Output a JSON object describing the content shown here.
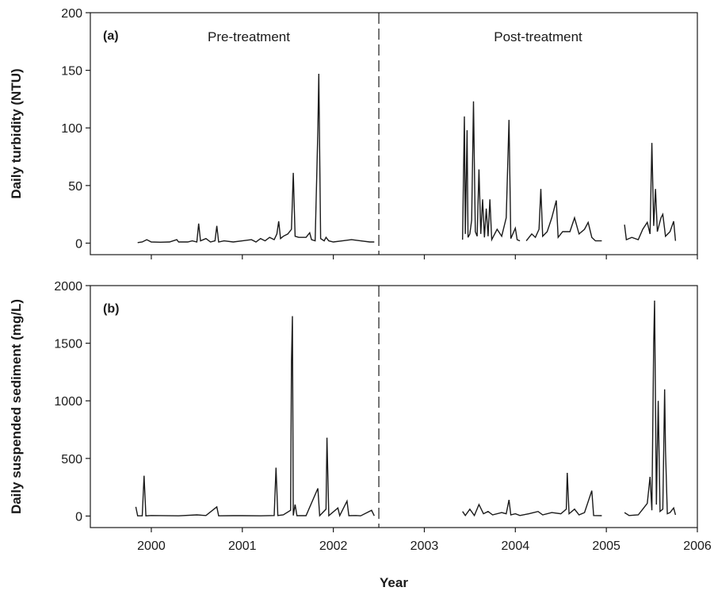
{
  "chart_data": [
    {
      "type": "line",
      "panel_label": "(a)",
      "ylabel": "Daily turbidity (NTU)",
      "xlabel": "",
      "xlim": [
        1999.33,
        2006.0
      ],
      "ylim": [
        -10,
        200
      ],
      "yticks": [
        0,
        50,
        100,
        150,
        200
      ],
      "ytick_labels": [
        "0",
        "50",
        "100",
        "150",
        "200"
      ],
      "grid": false,
      "treatment_year": 2002.5,
      "region_labels": [
        "Pre-treatment",
        "Post-treatment"
      ],
      "line_color": "#1a1a1a",
      "segments": [
        [
          [
            1999.85,
            0.5
          ],
          [
            1999.9,
            1
          ],
          [
            1999.95,
            3
          ],
          [
            2000.0,
            1
          ],
          [
            2000.1,
            0.8
          ],
          [
            2000.2,
            1
          ],
          [
            2000.28,
            3
          ],
          [
            2000.3,
            1
          ],
          [
            2000.4,
            1
          ],
          [
            2000.45,
            2
          ],
          [
            2000.5,
            1
          ],
          [
            2000.52,
            17
          ],
          [
            2000.54,
            2
          ],
          [
            2000.6,
            4
          ],
          [
            2000.65,
            1
          ],
          [
            2000.7,
            2
          ],
          [
            2000.72,
            15
          ],
          [
            2000.74,
            1
          ],
          [
            2000.8,
            2
          ],
          [
            2000.9,
            1
          ],
          [
            2001.0,
            2
          ],
          [
            2001.1,
            3
          ],
          [
            2001.15,
            1
          ],
          [
            2001.2,
            4
          ],
          [
            2001.25,
            2
          ],
          [
            2001.3,
            5
          ],
          [
            2001.35,
            3
          ],
          [
            2001.38,
            8
          ],
          [
            2001.4,
            19
          ],
          [
            2001.42,
            4
          ],
          [
            2001.45,
            6
          ],
          [
            2001.5,
            8
          ],
          [
            2001.54,
            12
          ],
          [
            2001.56,
            61
          ],
          [
            2001.58,
            6
          ],
          [
            2001.62,
            5
          ],
          [
            2001.7,
            5
          ],
          [
            2001.74,
            9
          ],
          [
            2001.76,
            3
          ],
          [
            2001.8,
            2
          ],
          [
            2001.83,
            98
          ],
          [
            2001.84,
            147
          ],
          [
            2001.86,
            4
          ],
          [
            2001.9,
            2
          ],
          [
            2001.92,
            5
          ],
          [
            2001.95,
            2
          ],
          [
            2002.0,
            1
          ],
          [
            2002.1,
            2
          ],
          [
            2002.2,
            3
          ],
          [
            2002.3,
            2
          ],
          [
            2002.4,
            1
          ],
          [
            2002.45,
            1
          ]
        ],
        [
          [
            2003.42,
            3
          ],
          [
            2003.44,
            110
          ],
          [
            2003.45,
            8
          ],
          [
            2003.47,
            98
          ],
          [
            2003.48,
            5
          ],
          [
            2003.5,
            8
          ],
          [
            2003.52,
            20
          ],
          [
            2003.54,
            123
          ],
          [
            2003.56,
            10
          ],
          [
            2003.58,
            6
          ],
          [
            2003.6,
            64
          ],
          [
            2003.62,
            8
          ],
          [
            2003.64,
            38
          ],
          [
            2003.66,
            5
          ],
          [
            2003.68,
            30
          ],
          [
            2003.7,
            6
          ],
          [
            2003.72,
            38
          ],
          [
            2003.74,
            3
          ],
          [
            2003.8,
            12
          ],
          [
            2003.85,
            6
          ],
          [
            2003.9,
            22
          ],
          [
            2003.93,
            107
          ],
          [
            2003.95,
            4
          ],
          [
            2004.0,
            13
          ],
          [
            2004.02,
            3
          ],
          [
            2004.05,
            2
          ]
        ],
        [
          [
            2004.12,
            2
          ],
          [
            2004.18,
            8
          ],
          [
            2004.22,
            5
          ],
          [
            2004.26,
            12
          ],
          [
            2004.28,
            47
          ],
          [
            2004.3,
            6
          ],
          [
            2004.35,
            10
          ],
          [
            2004.4,
            22
          ],
          [
            2004.45,
            37
          ],
          [
            2004.47,
            5
          ],
          [
            2004.52,
            10
          ],
          [
            2004.6,
            10
          ],
          [
            2004.65,
            22
          ],
          [
            2004.7,
            8
          ],
          [
            2004.76,
            12
          ],
          [
            2004.8,
            18
          ],
          [
            2004.84,
            5
          ],
          [
            2004.88,
            2
          ],
          [
            2004.95,
            2
          ]
        ],
        [
          [
            2005.2,
            16
          ],
          [
            2005.22,
            3
          ],
          [
            2005.28,
            5
          ],
          [
            2005.35,
            3
          ],
          [
            2005.4,
            12
          ],
          [
            2005.45,
            18
          ],
          [
            2005.48,
            8
          ],
          [
            2005.5,
            87
          ],
          [
            2005.52,
            15
          ],
          [
            2005.54,
            47
          ],
          [
            2005.56,
            10
          ],
          [
            2005.6,
            22
          ],
          [
            2005.62,
            25
          ],
          [
            2005.65,
            6
          ],
          [
            2005.7,
            10
          ],
          [
            2005.74,
            19
          ],
          [
            2005.76,
            2
          ]
        ]
      ]
    },
    {
      "type": "line",
      "panel_label": "(b)",
      "ylabel": "Daily suspended sediment (mg/L)",
      "xlabel": "Year",
      "xlim": [
        1999.33,
        2006.0
      ],
      "ylim": [
        -100,
        2000
      ],
      "xticks": [
        2000,
        2001,
        2002,
        2003,
        2004,
        2005,
        2006
      ],
      "xtick_labels": [
        "2000",
        "2001",
        "2002",
        "2003",
        "2004",
        "2005",
        "2006"
      ],
      "yticks": [
        0,
        500,
        1000,
        1500,
        2000
      ],
      "ytick_labels": [
        "0",
        "500",
        "1000",
        "1500",
        "2000"
      ],
      "grid": false,
      "treatment_year": 2002.5,
      "line_color": "#1a1a1a",
      "segments": [
        [
          [
            1999.83,
            80
          ],
          [
            1999.85,
            2
          ],
          [
            1999.9,
            2
          ],
          [
            1999.92,
            350
          ],
          [
            1999.94,
            2
          ],
          [
            2000.0,
            5
          ],
          [
            2000.3,
            2
          ],
          [
            2000.5,
            10
          ],
          [
            2000.6,
            5
          ],
          [
            2000.72,
            80
          ],
          [
            2000.74,
            2
          ],
          [
            2000.9,
            3
          ],
          [
            2001.0,
            3
          ],
          [
            2001.2,
            2
          ],
          [
            2001.35,
            5
          ],
          [
            2001.37,
            420
          ],
          [
            2001.39,
            5
          ],
          [
            2001.45,
            10
          ],
          [
            2001.53,
            50
          ],
          [
            2001.54,
            1340
          ],
          [
            2001.55,
            1735
          ],
          [
            2001.56,
            5
          ],
          [
            2001.58,
            100
          ],
          [
            2001.6,
            3
          ],
          [
            2001.7,
            3
          ],
          [
            2001.83,
            240
          ],
          [
            2001.85,
            3
          ],
          [
            2001.92,
            60
          ],
          [
            2001.93,
            680
          ],
          [
            2001.95,
            3
          ],
          [
            2002.05,
            70
          ],
          [
            2002.07,
            3
          ],
          [
            2002.15,
            130
          ],
          [
            2002.17,
            3
          ],
          [
            2002.25,
            5
          ],
          [
            2002.3,
            2
          ],
          [
            2002.42,
            50
          ],
          [
            2002.45,
            2
          ]
        ],
        [
          [
            2003.42,
            40
          ],
          [
            2003.45,
            5
          ],
          [
            2003.5,
            60
          ],
          [
            2003.55,
            5
          ],
          [
            2003.6,
            100
          ],
          [
            2003.65,
            20
          ],
          [
            2003.7,
            40
          ],
          [
            2003.75,
            10
          ],
          [
            2003.85,
            30
          ],
          [
            2003.9,
            20
          ],
          [
            2003.93,
            140
          ],
          [
            2003.95,
            10
          ],
          [
            2004.0,
            20
          ],
          [
            2004.05,
            5
          ],
          [
            2004.15,
            20
          ],
          [
            2004.25,
            40
          ],
          [
            2004.3,
            10
          ],
          [
            2004.4,
            30
          ],
          [
            2004.5,
            20
          ],
          [
            2004.56,
            60
          ],
          [
            2004.57,
            375
          ],
          [
            2004.59,
            20
          ],
          [
            2004.65,
            60
          ],
          [
            2004.7,
            10
          ],
          [
            2004.76,
            30
          ],
          [
            2004.84,
            220
          ],
          [
            2004.86,
            5
          ],
          [
            2004.95,
            3
          ]
        ],
        [
          [
            2005.2,
            30
          ],
          [
            2005.25,
            5
          ],
          [
            2005.35,
            10
          ],
          [
            2005.4,
            60
          ],
          [
            2005.45,
            110
          ],
          [
            2005.48,
            340
          ],
          [
            2005.5,
            50
          ],
          [
            2005.52,
            1500
          ],
          [
            2005.53,
            1870
          ],
          [
            2005.55,
            100
          ],
          [
            2005.57,
            1000
          ],
          [
            2005.59,
            40
          ],
          [
            2005.62,
            60
          ],
          [
            2005.64,
            1100
          ],
          [
            2005.65,
            570
          ],
          [
            2005.67,
            20
          ],
          [
            2005.7,
            30
          ],
          [
            2005.74,
            70
          ],
          [
            2005.76,
            10
          ]
        ]
      ]
    }
  ]
}
